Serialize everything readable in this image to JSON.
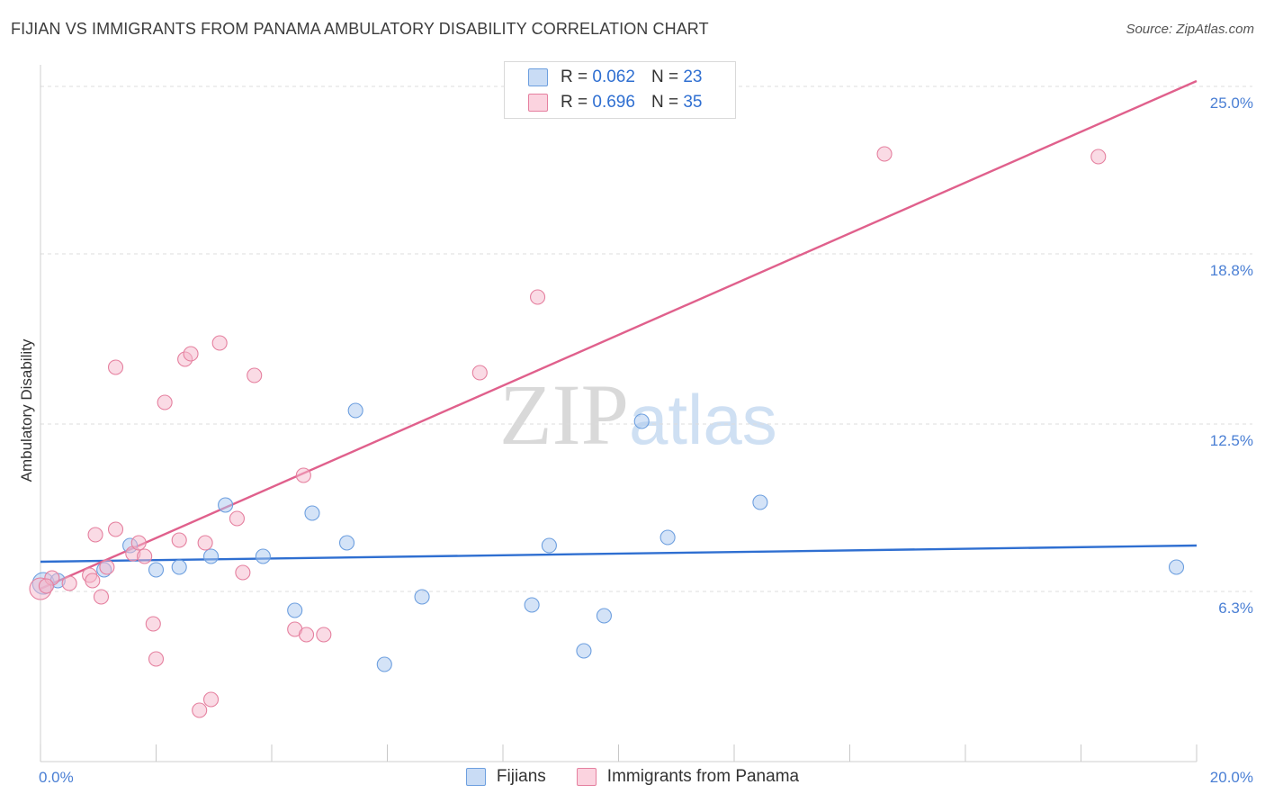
{
  "header": {
    "title": "FIJIAN VS IMMIGRANTS FROM PANAMA AMBULATORY DISABILITY CORRELATION CHART",
    "source": "Source: ZipAtlas.com"
  },
  "watermark": {
    "zip": "ZIP",
    "atlas": "atlas"
  },
  "legend": {
    "r_label": "R =",
    "n_label": "N =",
    "fijians": {
      "r": "0.062",
      "n": "23",
      "color": "#a9c8ef",
      "edge": "#6d9fdf"
    },
    "panama": {
      "r": "0.696",
      "n": "35",
      "color": "#f6b8cb",
      "edge": "#e5809f"
    }
  },
  "bottom_legend": [
    "Fijians",
    "Immigrants from Panama"
  ],
  "chart_data": {
    "type": "scatter",
    "title": "FIJIAN VS IMMIGRANTS FROM PANAMA AMBULATORY DISABILITY CORRELATION CHART",
    "xlabel": "",
    "ylabel": "Ambulatory Disability",
    "xlim": [
      0,
      20
    ],
    "ylim": [
      0,
      25.8
    ],
    "x_tick_labels": [
      "0.0%",
      "20.0%"
    ],
    "y_ticks": [
      {
        "value": 6.3,
        "label": "6.3%"
      },
      {
        "value": 12.5,
        "label": "12.5%"
      },
      {
        "value": 18.8,
        "label": "18.8%"
      },
      {
        "value": 25.0,
        "label": "25.0%"
      }
    ],
    "grid": "horizontal dashed",
    "series": [
      {
        "name": "Fijians",
        "color": "#a9c8ef",
        "edge": "#6d9fdf",
        "trend_color": "#2f6fd1",
        "trend": [
          [
            0,
            7.4
          ],
          [
            20,
            8.0
          ]
        ],
        "points": [
          [
            0.05,
            6.6
          ],
          [
            1.1,
            7.1
          ],
          [
            1.55,
            8.0
          ],
          [
            2.0,
            7.1
          ],
          [
            2.4,
            7.2
          ],
          [
            2.95,
            7.6
          ],
          [
            3.2,
            9.5
          ],
          [
            3.85,
            7.6
          ],
          [
            4.4,
            5.6
          ],
          [
            4.7,
            9.2
          ],
          [
            5.3,
            8.1
          ],
          [
            5.45,
            13.0
          ],
          [
            5.95,
            3.6
          ],
          [
            6.6,
            6.1
          ],
          [
            8.5,
            5.8
          ],
          [
            8.8,
            8.0
          ],
          [
            9.4,
            4.1
          ],
          [
            9.75,
            5.4
          ],
          [
            10.4,
            12.6
          ],
          [
            10.85,
            8.3
          ],
          [
            12.45,
            9.6
          ],
          [
            19.65,
            7.2
          ],
          [
            0.3,
            6.7
          ]
        ]
      },
      {
        "name": "Immigrants from Panama",
        "color": "#f6b8cb",
        "edge": "#e5809f",
        "trend_color": "#e0608c",
        "trend": [
          [
            0,
            6.4
          ],
          [
            20,
            25.2
          ]
        ],
        "points": [
          [
            0.0,
            6.4
          ],
          [
            0.2,
            6.8
          ],
          [
            0.5,
            6.6
          ],
          [
            0.85,
            6.9
          ],
          [
            0.9,
            6.7
          ],
          [
            0.95,
            8.4
          ],
          [
            1.05,
            6.1
          ],
          [
            1.15,
            7.2
          ],
          [
            1.3,
            8.6
          ],
          [
            1.3,
            14.6
          ],
          [
            1.6,
            7.7
          ],
          [
            1.7,
            8.1
          ],
          [
            1.8,
            7.6
          ],
          [
            1.95,
            5.1
          ],
          [
            2.0,
            3.8
          ],
          [
            2.15,
            13.3
          ],
          [
            2.4,
            8.2
          ],
          [
            2.5,
            14.9
          ],
          [
            2.6,
            15.1
          ],
          [
            2.75,
            1.9
          ],
          [
            2.85,
            8.1
          ],
          [
            2.95,
            2.3
          ],
          [
            3.1,
            15.5
          ],
          [
            3.4,
            9.0
          ],
          [
            3.5,
            7.0
          ],
          [
            3.7,
            14.3
          ],
          [
            4.4,
            4.9
          ],
          [
            4.55,
            10.6
          ],
          [
            4.6,
            4.7
          ],
          [
            4.9,
            4.7
          ],
          [
            7.6,
            14.4
          ],
          [
            8.6,
            17.2
          ],
          [
            14.6,
            22.5
          ],
          [
            18.3,
            22.4
          ],
          [
            0.1,
            6.5
          ]
        ]
      }
    ]
  }
}
